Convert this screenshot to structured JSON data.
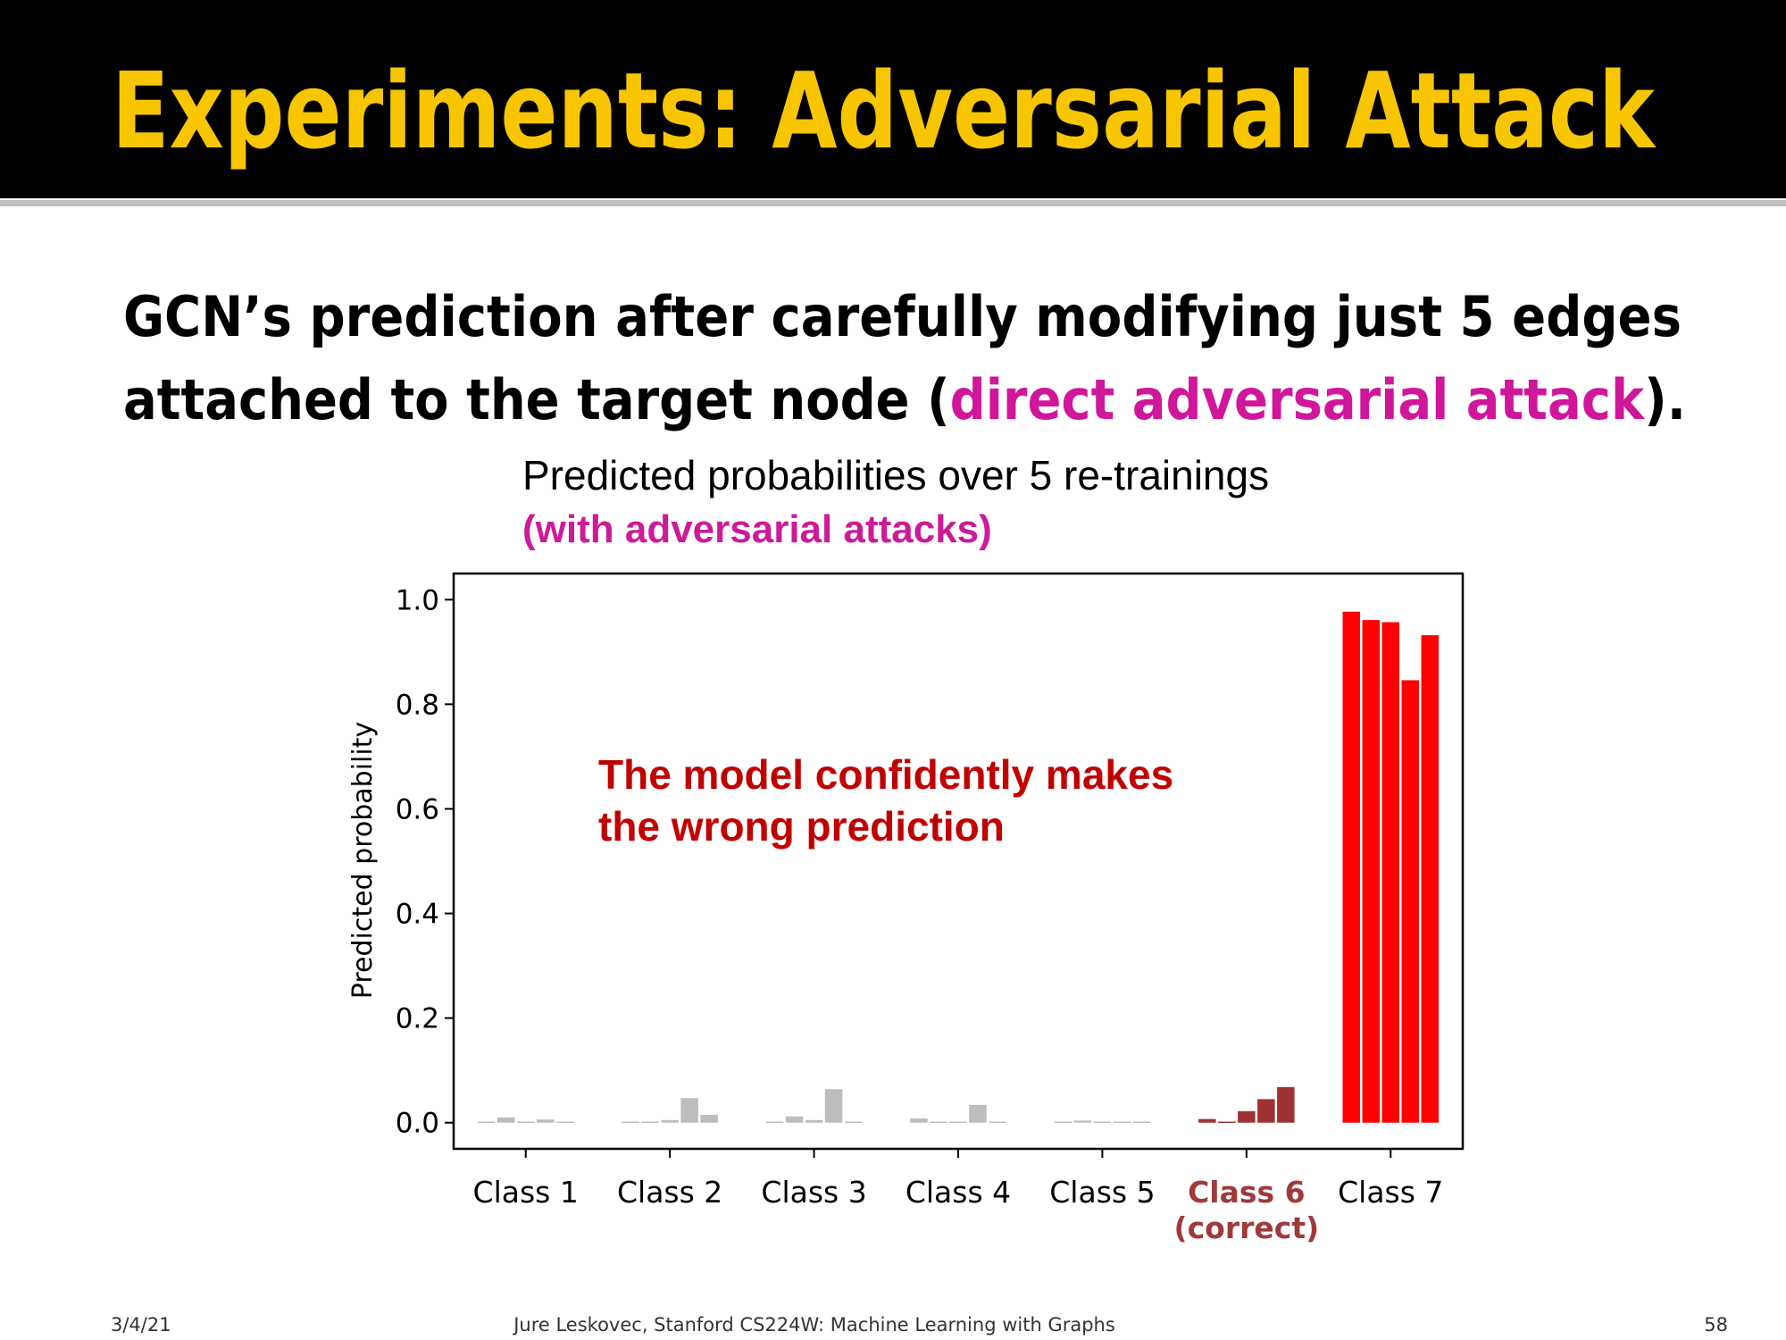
{
  "header": {
    "title": "Experiments: Adversarial Attack"
  },
  "heading": {
    "line1": "GCN’s prediction after carefully modifying just 5 edges",
    "line2": {
      "before": "attached to the target node (",
      "highlight": "direct adversarial attack",
      "after": ")."
    }
  },
  "chart_data": {
    "type": "bar",
    "title": "Predicted probabilities over 5 re-trainings",
    "subtitle": "(with adversarial attacks)",
    "ylabel": "Predicted probability",
    "annotation": [
      "The model confidently makes",
      "the wrong prediction"
    ],
    "categories": [
      "Class 1",
      "Class 2",
      "Class 3",
      "Class 4",
      "Class 5",
      "Class 6",
      "Class 7"
    ],
    "category_notes": [
      null,
      null,
      null,
      null,
      null,
      "(correct)",
      null
    ],
    "colors": [
      "#bdbdbd",
      "#bdbdbd",
      "#bdbdbd",
      "#bdbdbd",
      "#bdbdbd",
      "#9e3232",
      "#ff0000"
    ],
    "label_colors": [
      "#000000",
      "#000000",
      "#000000",
      "#000000",
      "#000000",
      "#a0393a",
      "#000000"
    ],
    "series": [
      {
        "values": [
          0.002,
          0.002,
          0.002,
          0.008,
          0.002,
          0.007,
          0.977
        ]
      },
      {
        "values": [
          0.01,
          0.002,
          0.012,
          0.002,
          0.004,
          0.002,
          0.961
        ]
      },
      {
        "values": [
          0.002,
          0.005,
          0.005,
          0.002,
          0.002,
          0.022,
          0.957
        ]
      },
      {
        "values": [
          0.006,
          0.047,
          0.064,
          0.034,
          0.002,
          0.045,
          0.846
        ]
      },
      {
        "values": [
          0.002,
          0.015,
          0.002,
          0.002,
          0.002,
          0.068,
          0.932
        ]
      }
    ],
    "ylim": [
      -0.05,
      1.05
    ],
    "yticks": [
      {
        "value": 0,
        "label": "0.0"
      },
      0.2,
      0.4,
      0.6,
      0.8,
      {
        "value": 1,
        "label": "1.0"
      }
    ],
    "grid": false
  },
  "footer": {
    "date": "3/4/21",
    "credit": "Jure Leskovec, Stanford CS224W: Machine Learning with Graphs",
    "page": "58"
  }
}
